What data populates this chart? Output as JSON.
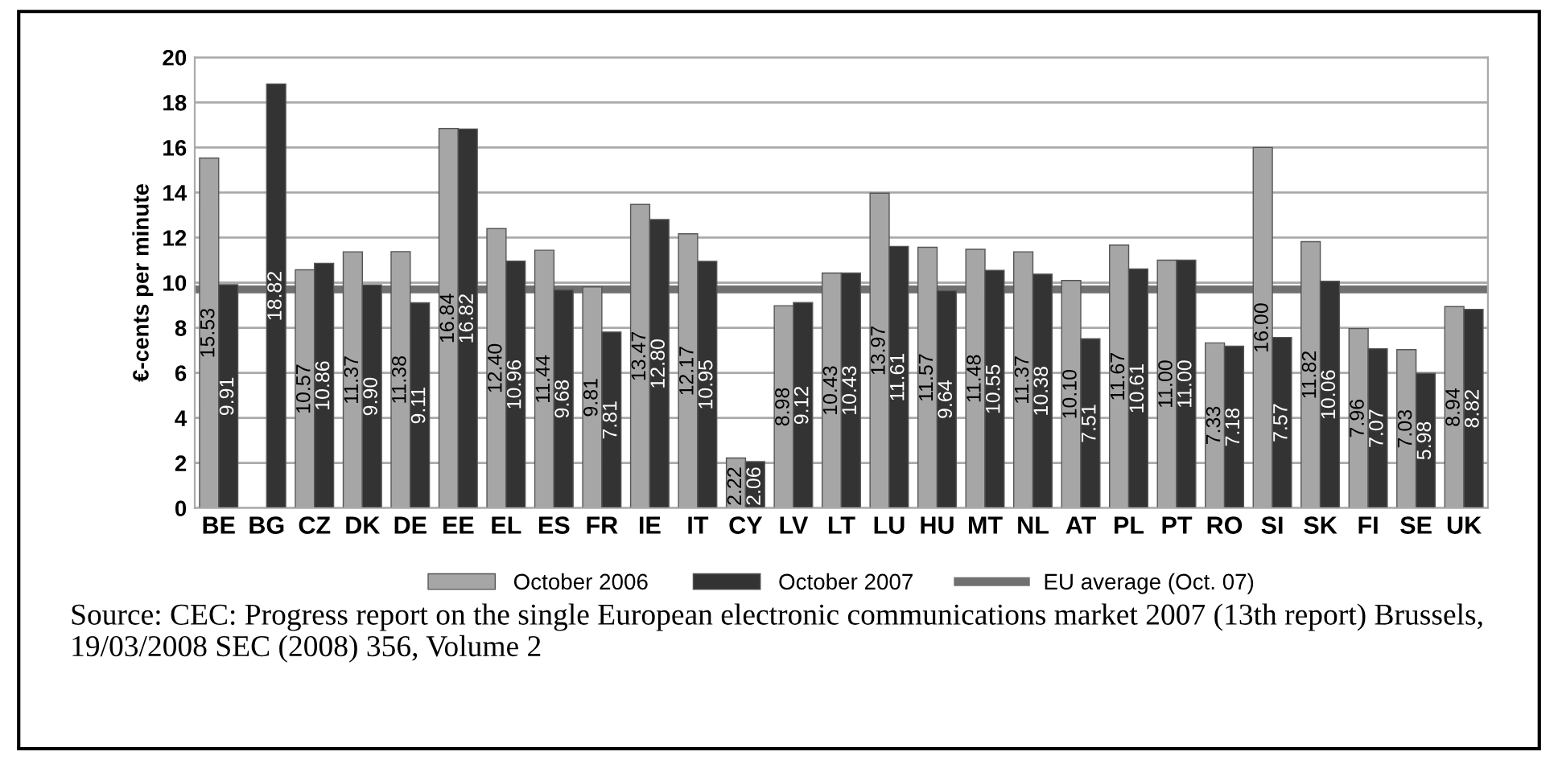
{
  "chart_data": {
    "type": "bar",
    "ylabel": "€-cents per minute",
    "categories": [
      "BE",
      "BG",
      "CZ",
      "DK",
      "DE",
      "EE",
      "EL",
      "ES",
      "FR",
      "IE",
      "IT",
      "CY",
      "LV",
      "LT",
      "LU",
      "HU",
      "MT",
      "NL",
      "AT",
      "PL",
      "PT",
      "RO",
      "SI",
      "SK",
      "FI",
      "SE",
      "UK"
    ],
    "series": [
      {
        "name": "October 2006",
        "color": "#a6a6a6",
        "values": [
          15.53,
          null,
          10.57,
          11.37,
          11.38,
          16.84,
          12.4,
          11.44,
          9.81,
          13.47,
          12.17,
          2.22,
          8.98,
          10.43,
          13.97,
          11.57,
          11.48,
          11.37,
          10.1,
          11.67,
          11.0,
          7.33,
          16.0,
          11.82,
          7.96,
          7.03,
          8.94
        ],
        "value_labels": [
          "15.53",
          null,
          "10.57",
          "11.37",
          "11.38",
          "16.84",
          "12.40",
          "11.44",
          "9.81",
          "13.47",
          "12.17",
          "2.22",
          "8.98",
          "10.43",
          "13.97",
          "11.57",
          "11.48",
          "11.37",
          "10.10",
          "11.67",
          "11.00",
          "7.33",
          "16.00",
          "11.82",
          "7.96",
          "7.03",
          "8.94"
        ]
      },
      {
        "name": "October 2007",
        "color": "#333333",
        "values": [
          9.91,
          18.82,
          10.86,
          9.9,
          9.11,
          16.82,
          10.96,
          9.68,
          7.81,
          12.8,
          10.95,
          2.06,
          9.12,
          10.43,
          11.61,
          9.64,
          10.55,
          10.38,
          7.51,
          10.61,
          11.0,
          7.18,
          7.57,
          10.06,
          7.07,
          5.98,
          8.82
        ],
        "value_labels": [
          "9.91",
          "18.82",
          "10.86",
          "9.90",
          "9.11",
          "16.82",
          "10.96",
          "9.68",
          "7.81",
          "12.80",
          "10.95",
          "2.06",
          "9.12",
          "10.43",
          "11.61",
          "9.64",
          "10.55",
          "10.38",
          "7.51",
          "10.61",
          "11.00",
          "7.18",
          "7.57",
          "10.06",
          "7.07",
          "5.98",
          "8.82"
        ]
      }
    ],
    "ref_lines": [
      {
        "axis": "y",
        "value": 9.7,
        "label": "EU average (Oct. 07)",
        "color": "#707070",
        "line_style": "solid"
      }
    ],
    "ylim": [
      0,
      20
    ],
    "yticks": [
      0,
      2,
      4,
      6,
      8,
      10,
      12,
      14,
      16,
      18,
      20
    ],
    "grid": "y",
    "legend": "bottom",
    "annotations": [
      "Source: CEC: Progress report on the single European electronic communications market 2007 (13th report) Brussels, 19/03/2008 SEC (2008) 356, Volume 2"
    ]
  }
}
